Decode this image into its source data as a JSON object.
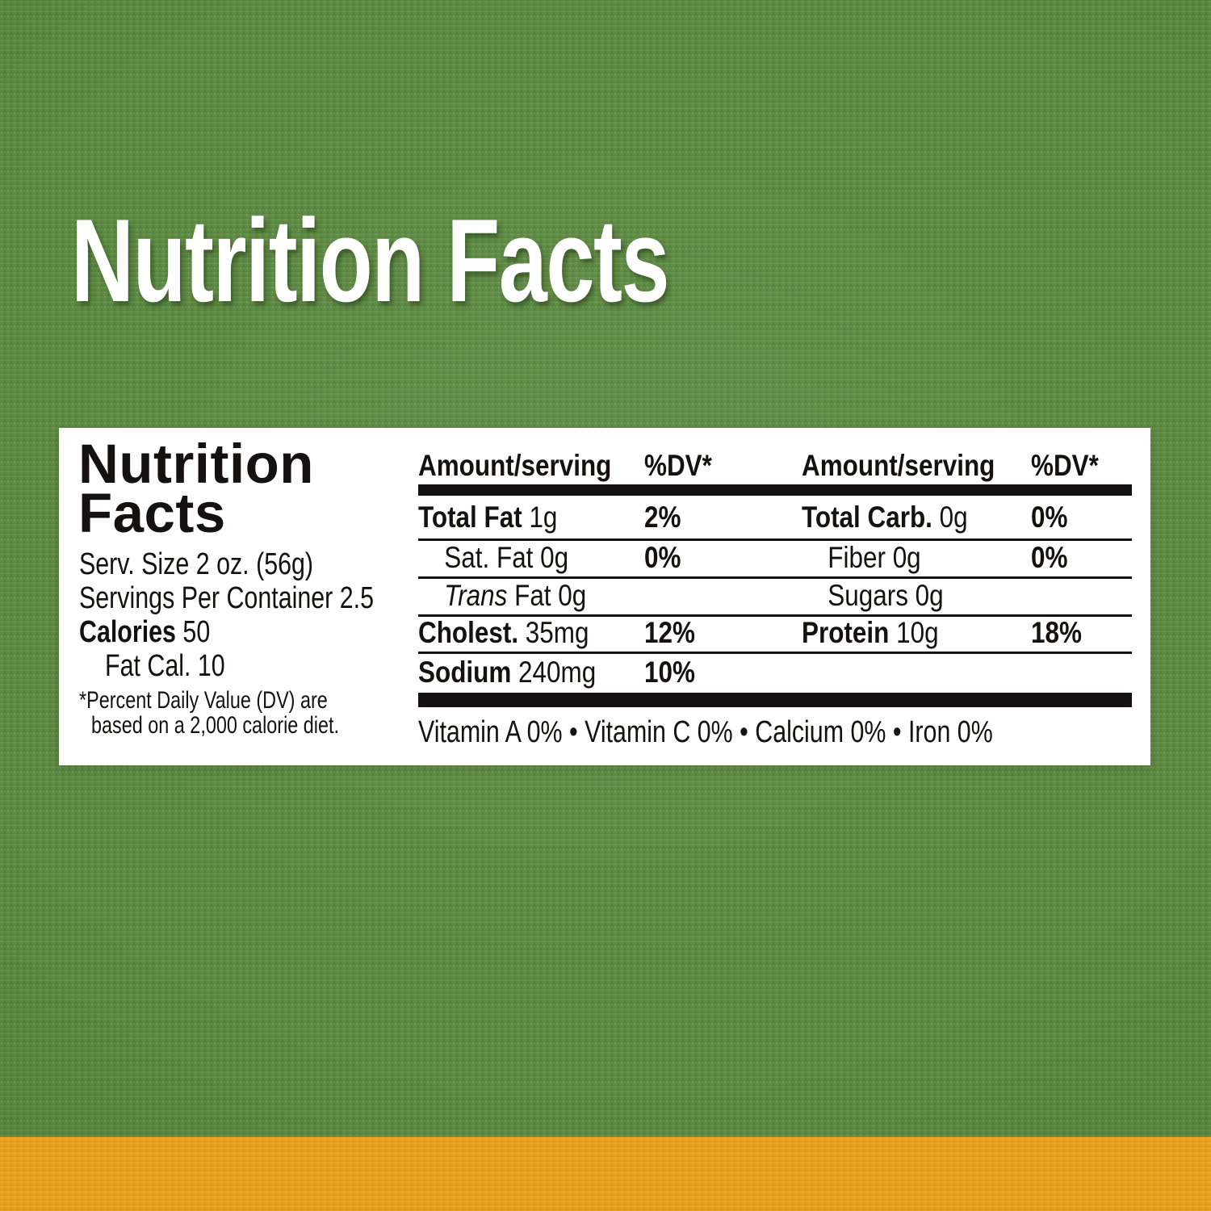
{
  "colors": {
    "background_green": "#5d8a42",
    "stripe_orange": "#e9a11d",
    "panel_white": "#ffffff",
    "text_black": "#141110"
  },
  "title": {
    "text": "Nutrition Facts"
  },
  "panel": {
    "heading": {
      "line1": "Nutrition",
      "line2": "Facts"
    },
    "serving": {
      "size": "Serv. Size 2 oz. (56g)",
      "per_container": "Servings Per Container 2.5",
      "calories_label": "Calories",
      "calories_value": " 50",
      "fat_cal": "Fat Cal. 10"
    },
    "footnote": {
      "line1": "*Percent Daily Value (DV) are",
      "line2": "based on a 2,000 calorie diet."
    },
    "table": {
      "col1": {
        "header_amount": "Amount/serving",
        "header_dv": "%DV*",
        "rows": [
          {
            "bold": "Total Fat",
            "rest": " 1g",
            "dv": "2%"
          },
          {
            "bold": "",
            "rest": "Sat. Fat 0g",
            "dv": "0%"
          },
          {
            "italic": "Trans",
            "rest": " Fat 0g",
            "dv": ""
          },
          {
            "bold": "Cholest.",
            "rest": " 35mg",
            "dv": "12%"
          },
          {
            "bold": "Sodium",
            "rest": " 240mg",
            "dv": "10%"
          }
        ]
      },
      "col2": {
        "header_amount": "Amount/serving",
        "header_dv": "%DV*",
        "rows": [
          {
            "bold": "Total Carb.",
            "rest": " 0g",
            "dv": "0%"
          },
          {
            "bold": "",
            "rest": "Fiber 0g",
            "dv": "0%"
          },
          {
            "bold": "",
            "rest": "Sugars 0g",
            "dv": ""
          },
          {
            "bold": "Protein",
            "rest": " 10g",
            "dv": "18%"
          }
        ]
      }
    },
    "vitamins": "Vitamin A 0% • Vitamin C 0% • Calcium 0% • Iron 0%"
  }
}
